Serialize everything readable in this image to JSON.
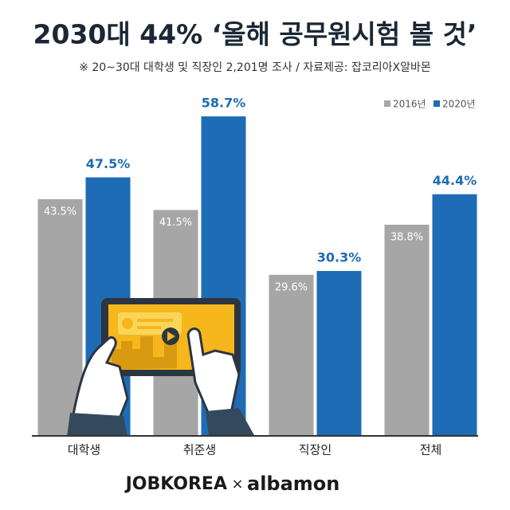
{
  "chart_data": {
    "type": "bar",
    "title": "2030대 44% ‘올해 공무원시험 볼 것’",
    "subtitle": "※ 20~30대 대학생 및 직장인 2,201명 조사 / 자료제공: 잡코리아X알바몬",
    "categories": [
      "대학생",
      "취준생",
      "직장인",
      "전체"
    ],
    "series": [
      {
        "name": "2016년",
        "color": "#a6a6a6",
        "values": [
          43.5,
          41.5,
          29.6,
          38.8
        ],
        "value_labels": [
          "43.5%",
          "41.5%",
          "29.6%",
          "38.8%"
        ]
      },
      {
        "name": "2020년",
        "color": "#1d6cb5",
        "values": [
          47.5,
          58.7,
          30.3,
          44.4
        ],
        "value_labels": [
          "47.5%",
          "58.7%",
          "30.3%",
          "44.4%"
        ]
      }
    ],
    "legend": "top-right"
  },
  "footer": {
    "left": "JOBKOREA",
    "separator": "×",
    "right": "albamon"
  }
}
